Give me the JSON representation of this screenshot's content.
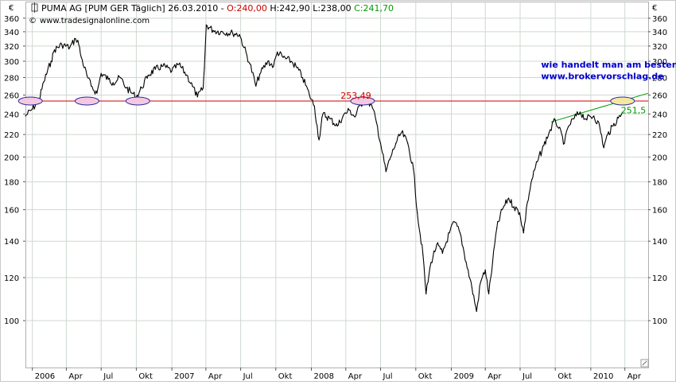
{
  "header": {
    "title": "PUMA AG [PUM GER  Täglich] 26.03.2010",
    "open": "O:240,00",
    "high_low": "H:242,90 L:238,00",
    "close": "C:241,70",
    "source": "www.tradesignalonline.com",
    "currency_left": "€",
    "currency_right": "€",
    "colors": {
      "open": "#cc0000",
      "close": "#009900",
      "text": "#000000"
    }
  },
  "chart_data": {
    "type": "line",
    "title": "",
    "xlabel": "",
    "ylabel": "",
    "y_scale": "log",
    "ylim": [
      82,
      385
    ],
    "xlim": [
      "2005-12-15",
      "2010-06-01"
    ],
    "grid": true,
    "y_ticks": [
      100,
      120,
      140,
      160,
      180,
      200,
      220,
      240,
      260,
      280,
      300,
      320,
      340,
      360
    ],
    "x_ticks": [
      {
        "label": "2006",
        "date": "2006-01-02"
      },
      {
        "label": "Apr",
        "date": "2006-04-01"
      },
      {
        "label": "Jul",
        "date": "2006-07-01"
      },
      {
        "label": "Okt",
        "date": "2006-10-01"
      },
      {
        "label": "2007",
        "date": "2007-01-02"
      },
      {
        "label": "Apr",
        "date": "2007-04-01"
      },
      {
        "label": "Jul",
        "date": "2007-07-01"
      },
      {
        "label": "Okt",
        "date": "2007-10-01"
      },
      {
        "label": "2008",
        "date": "2008-01-02"
      },
      {
        "label": "Apr",
        "date": "2008-04-01"
      },
      {
        "label": "Jul",
        "date": "2008-07-01"
      },
      {
        "label": "Okt",
        "date": "2008-10-01"
      },
      {
        "label": "2009",
        "date": "2009-01-02"
      },
      {
        "label": "Apr",
        "date": "2009-04-01"
      },
      {
        "label": "Jul",
        "date": "2009-07-01"
      },
      {
        "label": "Okt",
        "date": "2009-10-01"
      },
      {
        "label": "2010",
        "date": "2010-01-02"
      },
      {
        "label": "Apr",
        "date": "2010-04-01"
      }
    ],
    "series": [
      {
        "color": "#000000",
        "points": [
          [
            "2005-12-15",
            238
          ],
          [
            "2006-01-02",
            245
          ],
          [
            "2006-01-20",
            255
          ],
          [
            "2006-02-01",
            275
          ],
          [
            "2006-02-20",
            300
          ],
          [
            "2006-03-01",
            315
          ],
          [
            "2006-03-20",
            322
          ],
          [
            "2006-04-10",
            318
          ],
          [
            "2006-04-25",
            330
          ],
          [
            "2006-05-01",
            328
          ],
          [
            "2006-05-10",
            305
          ],
          [
            "2006-05-25",
            282
          ],
          [
            "2006-06-05",
            270
          ],
          [
            "2006-06-20",
            262
          ],
          [
            "2006-07-01",
            285
          ],
          [
            "2006-07-20",
            278
          ],
          [
            "2006-08-01",
            274
          ],
          [
            "2006-08-20",
            280
          ],
          [
            "2006-09-05",
            268
          ],
          [
            "2006-09-20",
            262
          ],
          [
            "2006-10-01",
            258
          ],
          [
            "2006-10-15",
            268
          ],
          [
            "2006-11-01",
            283
          ],
          [
            "2006-11-20",
            290
          ],
          [
            "2006-12-10",
            294
          ],
          [
            "2007-01-02",
            288
          ],
          [
            "2007-01-20",
            296
          ],
          [
            "2007-02-10",
            283
          ],
          [
            "2007-02-25",
            270
          ],
          [
            "2007-03-10",
            258
          ],
          [
            "2007-03-25",
            268
          ],
          [
            "2007-03-28",
            292
          ],
          [
            "2007-04-02",
            350
          ],
          [
            "2007-04-20",
            342
          ],
          [
            "2007-05-10",
            340
          ],
          [
            "2007-06-10",
            338
          ],
          [
            "2007-06-28",
            336
          ],
          [
            "2007-07-10",
            318
          ],
          [
            "2007-07-25",
            297
          ],
          [
            "2007-08-10",
            270
          ],
          [
            "2007-08-20",
            284
          ],
          [
            "2007-09-10",
            300
          ],
          [
            "2007-09-25",
            294
          ],
          [
            "2007-10-05",
            312
          ],
          [
            "2007-10-20",
            305
          ],
          [
            "2007-11-10",
            300
          ],
          [
            "2007-11-25",
            292
          ],
          [
            "2007-12-10",
            280
          ],
          [
            "2007-12-28",
            260
          ],
          [
            "2008-01-10",
            248
          ],
          [
            "2008-01-22",
            215
          ],
          [
            "2008-02-01",
            240
          ],
          [
            "2008-02-20",
            235
          ],
          [
            "2008-03-10",
            228
          ],
          [
            "2008-03-25",
            238
          ],
          [
            "2008-04-10",
            244
          ],
          [
            "2008-04-25",
            237
          ],
          [
            "2008-05-10",
            250
          ],
          [
            "2008-05-25",
            256
          ],
          [
            "2008-06-10",
            246
          ],
          [
            "2008-06-20",
            232
          ],
          [
            "2008-07-01",
            212
          ],
          [
            "2008-07-15",
            188
          ],
          [
            "2008-07-25",
            198
          ],
          [
            "2008-08-10",
            212
          ],
          [
            "2008-08-25",
            222
          ],
          [
            "2008-09-10",
            212
          ],
          [
            "2008-09-25",
            190
          ],
          [
            "2008-10-05",
            158
          ],
          [
            "2008-10-20",
            132
          ],
          [
            "2008-10-28",
            112
          ],
          [
            "2008-11-10",
            128
          ],
          [
            "2008-11-25",
            138
          ],
          [
            "2008-12-10",
            133
          ],
          [
            "2008-12-28",
            145
          ],
          [
            "2009-01-10",
            152
          ],
          [
            "2009-01-25",
            145
          ],
          [
            "2009-02-10",
            128
          ],
          [
            "2009-02-25",
            115
          ],
          [
            "2009-03-09",
            104
          ],
          [
            "2009-03-20",
            118
          ],
          [
            "2009-04-01",
            124
          ],
          [
            "2009-04-10",
            112
          ],
          [
            "2009-04-20",
            128
          ],
          [
            "2009-05-01",
            148
          ],
          [
            "2009-05-15",
            160
          ],
          [
            "2009-06-01",
            168
          ],
          [
            "2009-06-15",
            162
          ],
          [
            "2009-06-30",
            158
          ],
          [
            "2009-07-10",
            145
          ],
          [
            "2009-07-20",
            165
          ],
          [
            "2009-08-01",
            182
          ],
          [
            "2009-08-15",
            196
          ],
          [
            "2009-09-01",
            210
          ],
          [
            "2009-09-15",
            222
          ],
          [
            "2009-10-01",
            234
          ],
          [
            "2009-10-10",
            226
          ],
          [
            "2009-10-25",
            212
          ],
          [
            "2009-11-05",
            228
          ],
          [
            "2009-11-20",
            236
          ],
          [
            "2009-12-05",
            242
          ],
          [
            "2009-12-20",
            235
          ],
          [
            "2010-01-10",
            238
          ],
          [
            "2010-01-25",
            228
          ],
          [
            "2010-02-05",
            208
          ],
          [
            "2010-02-15",
            220
          ],
          [
            "2010-03-01",
            228
          ],
          [
            "2010-03-15",
            236
          ],
          [
            "2010-03-26",
            241.7
          ]
        ]
      }
    ],
    "lines": [
      {
        "name": "horizontal",
        "color": "#cc0000",
        "start": [
          "2005-12-15",
          253.49
        ],
        "end": [
          "2010-06-01",
          253.49
        ]
      },
      {
        "name": "trend",
        "color": "#009900",
        "start": [
          "2009-09-20",
          232
        ],
        "end": [
          "2010-06-01",
          262
        ]
      }
    ],
    "markers": [
      {
        "date": "2005-12-28",
        "value": 253.49,
        "color": "#f4c8e0"
      },
      {
        "date": "2006-05-25",
        "value": 253.49,
        "color": "#f4c8e0"
      },
      {
        "date": "2006-10-05",
        "value": 253.49,
        "color": "#f4c8e0"
      },
      {
        "date": "2008-05-15",
        "value": 253.49,
        "color": "#f4c8e0"
      },
      {
        "date": "2010-03-26",
        "value": 253.49,
        "color": "#f4e8a0"
      }
    ],
    "annotations": [
      {
        "text": "253,49",
        "date": "2008-04-25",
        "value": 253.49,
        "color": "#cc0000"
      },
      {
        "text": "251,5",
        "date": "2010-03-26",
        "value": 251.5,
        "color": "#009900"
      },
      {
        "text": "wie handelt man am besten die Aktie ?",
        "date": "2009-08-25",
        "value": 292,
        "color": "#0000cc"
      },
      {
        "text": "www.brokervorschlag.de",
        "date": "2009-08-25",
        "value": 278,
        "color": "#0000cc"
      }
    ]
  }
}
